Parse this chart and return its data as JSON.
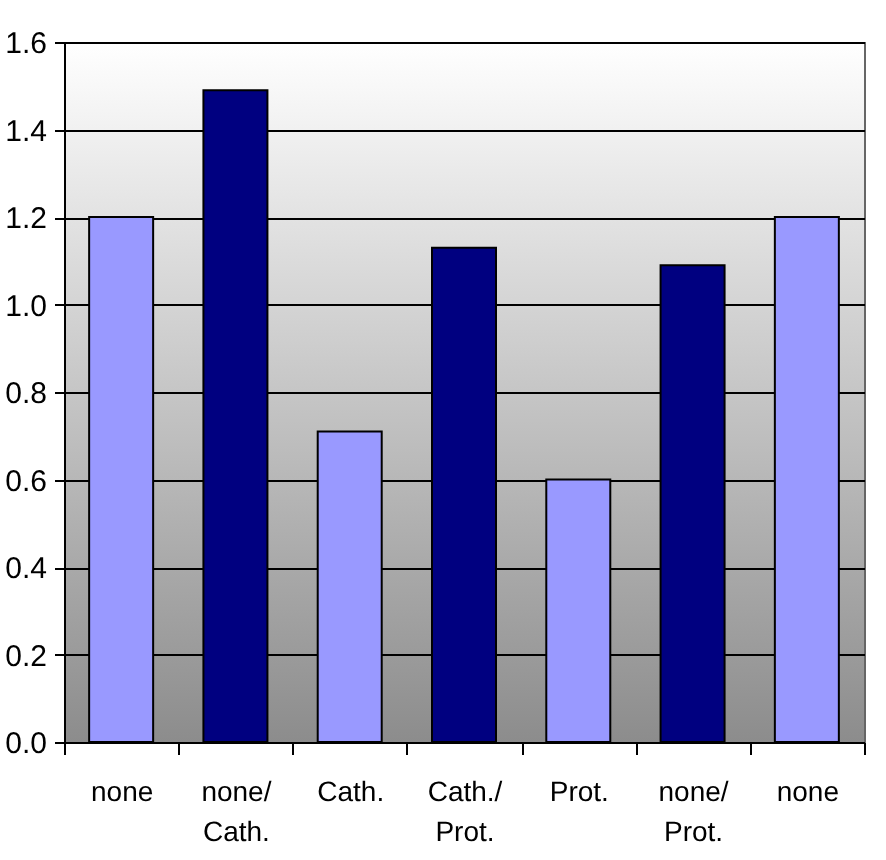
{
  "chart_data": {
    "type": "bar",
    "categories": [
      "none",
      "none/\nCath.",
      "Cath.",
      "Cath./\nProt.",
      "Prot.",
      "none/\nProt.",
      "none"
    ],
    "values": [
      1.2,
      1.49,
      0.71,
      1.13,
      0.6,
      1.09,
      1.2
    ],
    "colors": [
      "#9999ff",
      "#000080",
      "#9999ff",
      "#000080",
      "#9999ff",
      "#000080",
      "#9999ff"
    ],
    "ylim": [
      0,
      1.6
    ],
    "yticks": [
      {
        "value": 0,
        "label": "0.0"
      },
      0.2,
      0.4,
      0.6,
      0.8,
      {
        "value": 1,
        "label": "1.0"
      },
      1.2,
      1.4,
      1.6
    ],
    "grid": "y"
  }
}
